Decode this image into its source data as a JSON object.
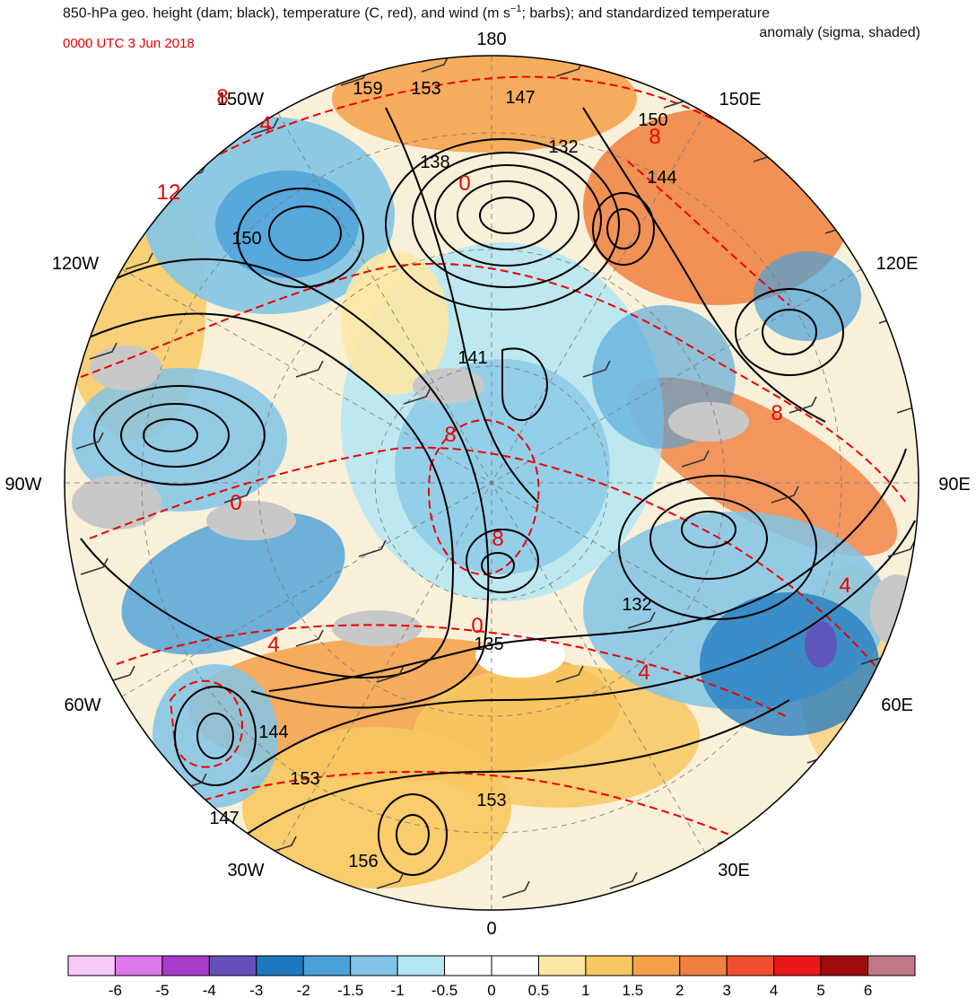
{
  "header": {
    "title_line1": "850-hPa geo. height (dam; black), temperature (C, red), and wind (m s",
    "title_sup": "−1",
    "title_line1_end": "; barbs); and standardized temperature",
    "title_line2": "anomaly (sigma, shaded)",
    "timestamp": "0000 UTC 3 Jun 2018"
  },
  "map": {
    "projection": "north-polar-stereographic",
    "longitude_labels": [
      {
        "text": "180",
        "position": "top"
      },
      {
        "text": "150E",
        "position": "top-right"
      },
      {
        "text": "120E",
        "position": "upper-right"
      },
      {
        "text": "90E",
        "position": "right"
      },
      {
        "text": "60E",
        "position": "lower-right"
      },
      {
        "text": "30E",
        "position": "bottom-right"
      },
      {
        "text": "0",
        "position": "bottom"
      },
      {
        "text": "30W",
        "position": "bottom-left"
      },
      {
        "text": "60W",
        "position": "lower-left"
      },
      {
        "text": "90W",
        "position": "left"
      },
      {
        "text": "120W",
        "position": "upper-left"
      },
      {
        "text": "150W",
        "position": "top-left"
      }
    ],
    "height_contour_labels": [
      "159",
      "153",
      "147",
      "132",
      "150",
      "144",
      "138",
      "150",
      "141",
      "132",
      "135",
      "144",
      "153",
      "147",
      "156",
      "153"
    ],
    "temperature_contour_labels": [
      "8",
      "4",
      "12",
      "0",
      "8",
      "8",
      "8",
      "0",
      "8",
      "4",
      "0",
      "4",
      "4"
    ],
    "colors": {
      "height_contours": "#000000",
      "temperature_contours": "#ee0000",
      "barbs": "#333333",
      "land_mask": "#c8c8c8"
    }
  },
  "colorbar": {
    "ticks": [
      "-6",
      "-5",
      "-4",
      "-3",
      "-2",
      "-1.5",
      "-1",
      "-0.5",
      "0",
      "0.5",
      "1",
      "1.5",
      "2",
      "3",
      "4",
      "5",
      "6"
    ],
    "colors": [
      "#f8c8f8",
      "#dc78ec",
      "#a83ccc",
      "#6450b8",
      "#1e78c0",
      "#4aa0d8",
      "#82c4e6",
      "#b4e6f4",
      "#ffffff",
      "#ffffff",
      "#fce8a4",
      "#f8c860",
      "#f4a048",
      "#f08040",
      "#f05030",
      "#e81818",
      "#a00c0c",
      "#c07888"
    ]
  }
}
